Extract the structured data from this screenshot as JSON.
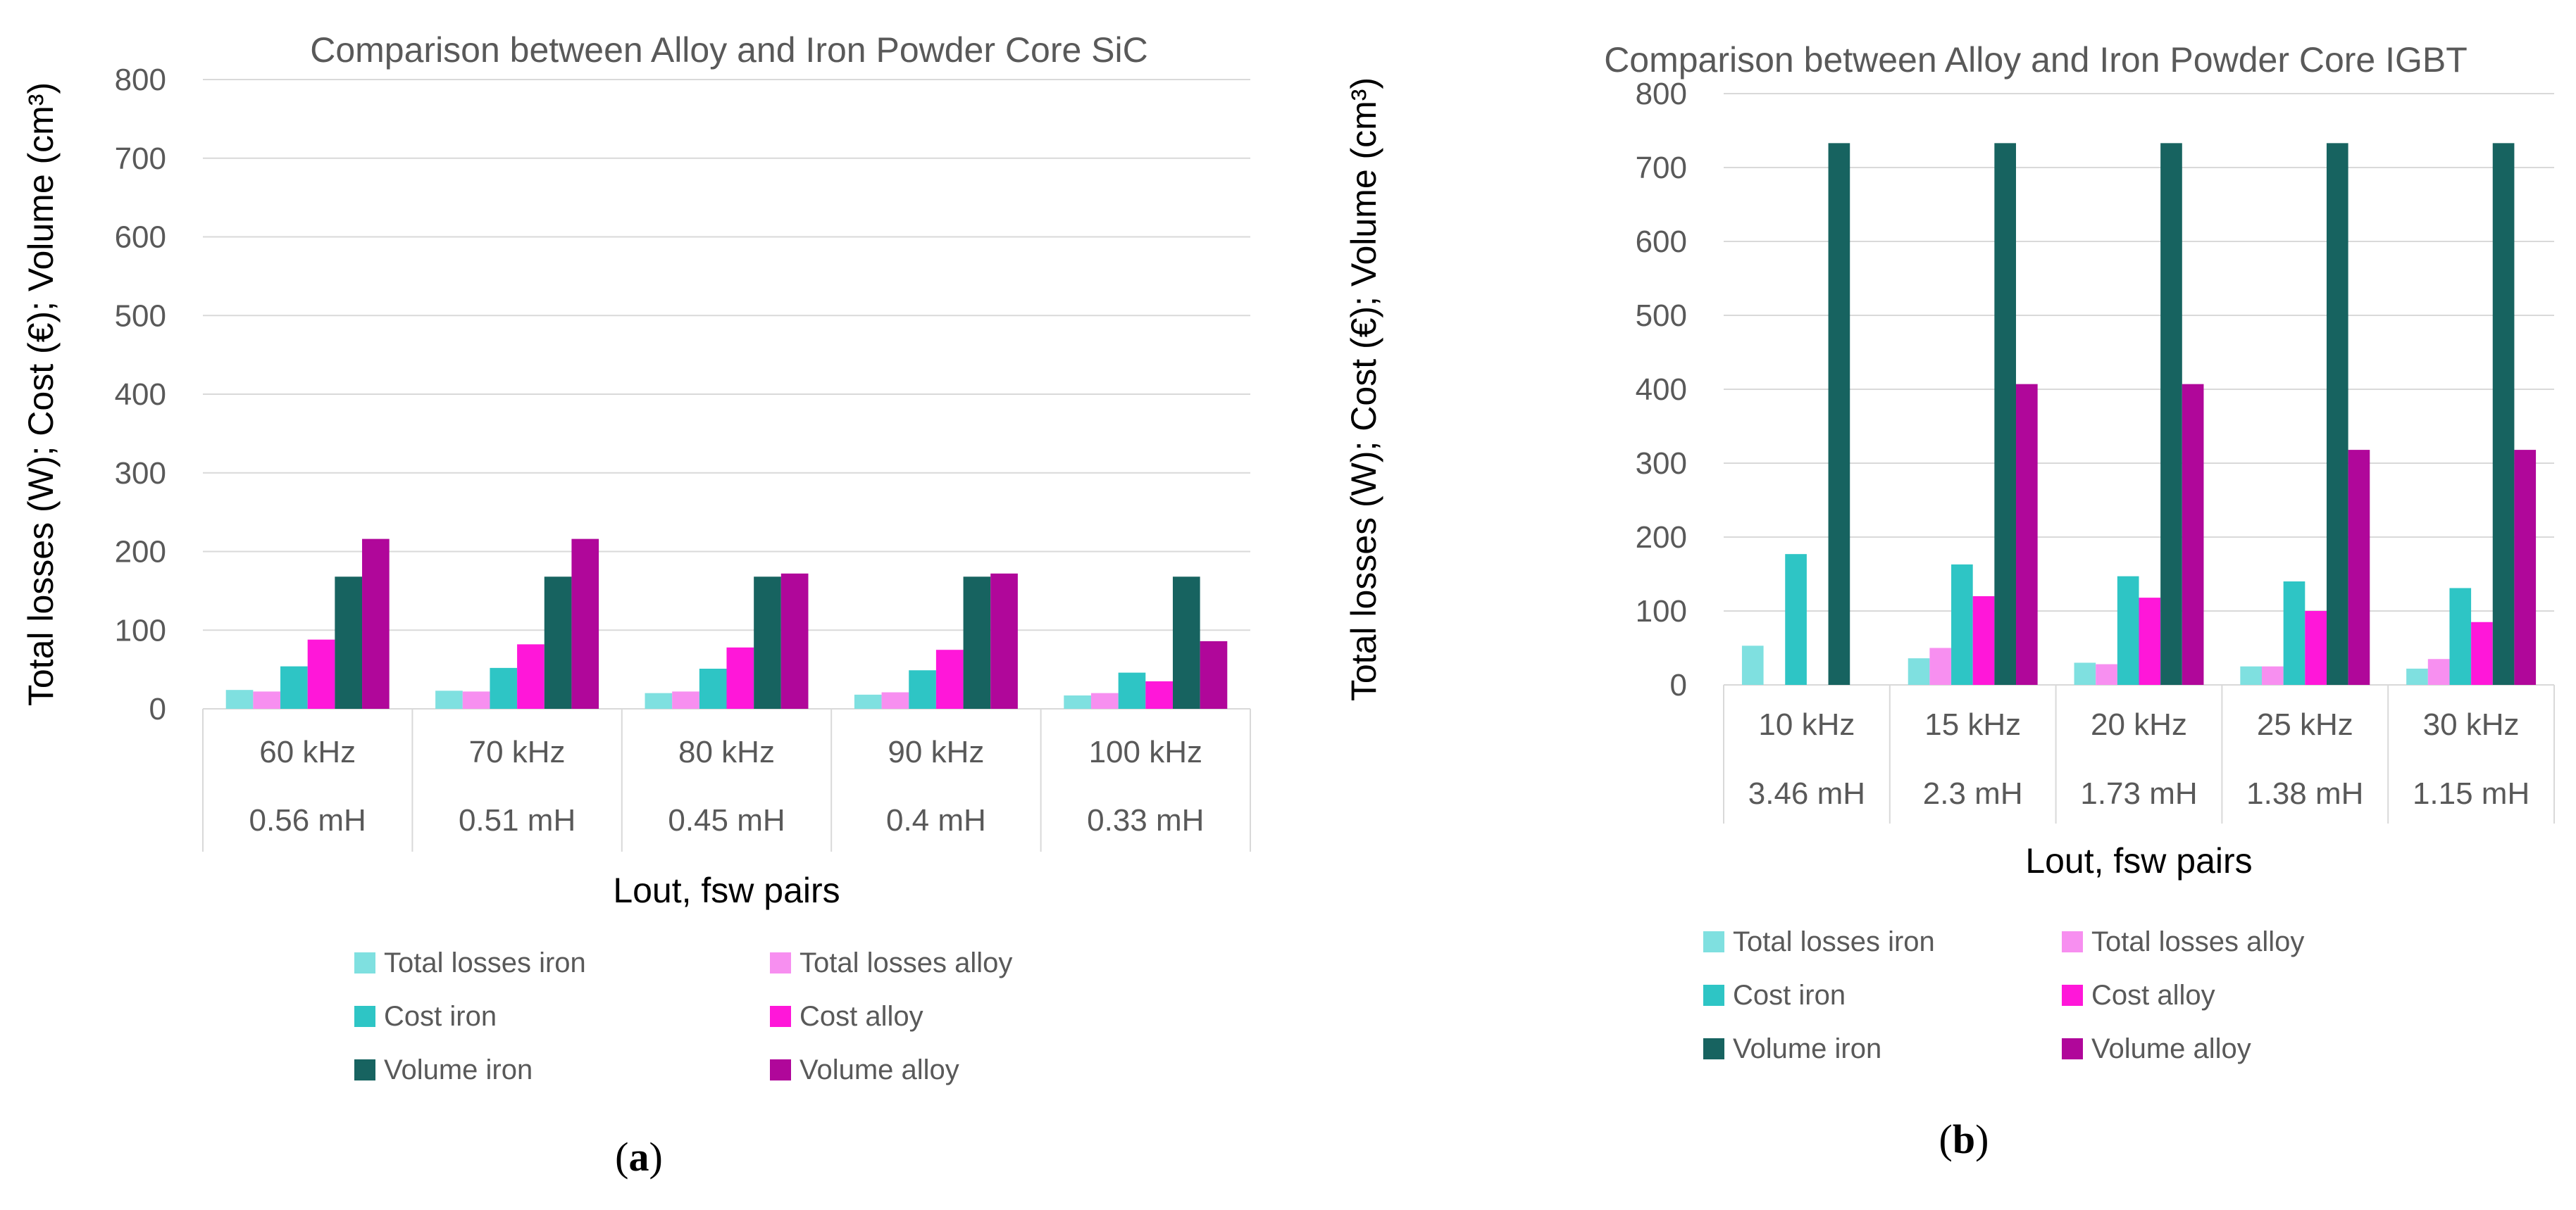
{
  "series_meta": [
    {
      "name": "Total losses iron",
      "color": "#7fe0e0"
    },
    {
      "name": "Total losses alloy",
      "color": "#f78ff0"
    },
    {
      "name": "Cost iron",
      "color": "#2ec5c5"
    },
    {
      "name": "Cost alloy",
      "color": "#ff17d9"
    },
    {
      "name": "Volume iron",
      "color": "#176360"
    },
    {
      "name": "Volume alloy",
      "color": "#b0079a"
    }
  ],
  "chart_data": [
    {
      "type": "bar",
      "panel": {
        "open": "(",
        "letter": "a",
        "close": ")"
      },
      "title": "Comparison between Alloy and Iron  Powder Core SiC",
      "xlabel": "Lout, fsw pairs",
      "ylabel": "Total losses (W); Cost (€); Volume (cm³)",
      "ylim": [
        0,
        800
      ],
      "yticks": [
        0,
        100,
        200,
        300,
        400,
        500,
        600,
        700,
        800
      ],
      "grid": true,
      "legend_position": "bottom",
      "categories": [
        [
          "60 kHz",
          "0.56 mH"
        ],
        [
          "70 kHz",
          "0.51 mH"
        ],
        [
          "80 kHz",
          "0.45 mH"
        ],
        [
          "90 kHz",
          "0.4 mH"
        ],
        [
          "100 kHz",
          "0.33 mH"
        ]
      ],
      "series": [
        {
          "name": "Total losses iron",
          "values": [
            24,
            23,
            20,
            18,
            17
          ]
        },
        {
          "name": "Total losses alloy",
          "values": [
            22,
            22,
            22,
            21,
            20
          ]
        },
        {
          "name": "Cost iron",
          "values": [
            54,
            52,
            51,
            49,
            46
          ]
        },
        {
          "name": "Cost alloy",
          "values": [
            88,
            82,
            78,
            75,
            35
          ]
        },
        {
          "name": "Volume iron",
          "values": [
            168,
            168,
            168,
            168,
            168
          ]
        },
        {
          "name": "Volume alloy",
          "values": [
            216,
            216,
            172,
            172,
            86
          ]
        }
      ]
    },
    {
      "type": "bar",
      "panel": {
        "open": "(",
        "letter": "b",
        "close": ")"
      },
      "title": "Comparison between Alloy and Iron  Powder Core IGBT",
      "xlabel": "Lout, fsw pairs",
      "ylabel": "Total losses (W); Cost (€); Volume (cm³)",
      "ylim": [
        0,
        800
      ],
      "yticks": [
        0,
        100,
        200,
        300,
        400,
        500,
        600,
        700,
        800
      ],
      "grid": true,
      "legend_position": "bottom",
      "categories": [
        [
          "10 kHz",
          "3.46 mH"
        ],
        [
          "15 kHz",
          "2.3 mH"
        ],
        [
          "20 kHz",
          "1.73 mH"
        ],
        [
          "25 kHz",
          "1.38 mH"
        ],
        [
          "30 kHz",
          "1.15 mH"
        ]
      ],
      "series": [
        {
          "name": "Total losses iron",
          "values": [
            53,
            36,
            30,
            25,
            22
          ]
        },
        {
          "name": "Total losses alloy",
          "values": [
            0,
            50,
            28,
            25,
            35
          ]
        },
        {
          "name": "Cost iron",
          "values": [
            177,
            163,
            147,
            140,
            131
          ]
        },
        {
          "name": "Cost alloy",
          "values": [
            0,
            120,
            118,
            100,
            85
          ]
        },
        {
          "name": "Volume iron",
          "values": [
            733,
            733,
            733,
            733,
            733
          ]
        },
        {
          "name": "Volume alloy",
          "values": [
            0,
            407,
            407,
            318,
            318
          ]
        }
      ]
    }
  ]
}
